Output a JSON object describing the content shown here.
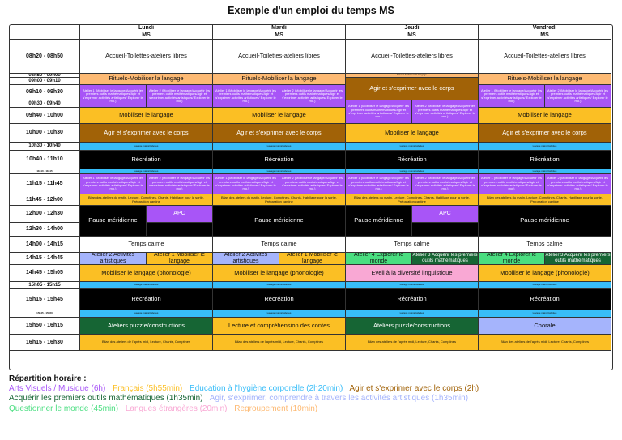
{
  "title": "Exemple d'un emploi du temps MS",
  "days": [
    "Lundi",
    "Mardi",
    "Jeudi",
    "Vendredi"
  ],
  "level": "MS",
  "times": {
    "t1": "08h20 - 08h50",
    "t2": "08h50 - 09h00",
    "t3": "09h00 - 09h10",
    "t4": "09h10 - 09h30",
    "t5": "09h30 - 09h40",
    "t6": "09h40 - 10h00",
    "t7": "10h00 - 10h30",
    "t8": "10h30 - 10h40",
    "t9": "10h40 - 11h10",
    "t10": "11h10 - 11h15",
    "t11": "11h15 - 11h45",
    "t12": "11h45 - 12h00",
    "t13": "12h00 - 12h30",
    "t14": "12h30 - 14h00",
    "t15": "14h00 - 14h15",
    "t16": "14h15 - 14h45",
    "t17": "14h45 - 15h05",
    "t18": "15h05 - 15h15",
    "t19": "15h15 - 15h45",
    "t20": "15h45 - 15h50",
    "t21": "15h50 - 16h15",
    "t22": "16h15 - 16h30"
  },
  "activities": {
    "accueil": "Accueil-Toilettes-ateliers libres",
    "rituels": "Rituels-Mobiliser la langage",
    "rituels_small": "Rituels-Mobiliser la langage",
    "atelier1_phon": "Atelier 1 (Mobiliser le langage/Acquérir les premiers outils mathématiques/Agir et s'exprimer activités artistiques/ Explorer le mo.)",
    "atelier2_phon": "Atelier 2 (Mobiliser le langage/Acquérir les premiers outils mathématiques/Agir et s'exprimer activités artistiques/ Explorer le mo.)",
    "agir_corps": "Agir et s'exprimer avec le corps",
    "mobiliser": "Mobiliser le langage",
    "lavage": "Lavage mains/toilettes",
    "recreation": "Récréation",
    "bilan_matin": "Bilan des ateliers du matin, Lecture, Comptines, Chants, Habillage pour la sortie, Préparation cantine",
    "pause": "Pause méridienne",
    "apc": "APC",
    "temps_calme": "Temps calme",
    "atelier2_arts": "Atelier 2 Activités artistiques",
    "atelier1_mob": "Atelier 1 Mobiliser le langage",
    "atelier4_monde": "Atelier 4 Explorer le monde",
    "atelier3_maths": "Atelier 3 Acquérir les premiers outils mathématiques",
    "phonologie": "Mobiliser le langage (phonologie)",
    "eveil": "Eveil à la diversité linguistique",
    "puzzle": "Ateliers puzzle/constructions",
    "lecture": "Lecture et compréhension des contes",
    "chorale": "Chorale",
    "bilan_aprem": "Bilan des ateliers de l'après midi, Lecture, Chants, Comptines"
  },
  "legend": {
    "title": "Répartition horaire :",
    "items": [
      {
        "text": "Arts Visuels / Musique (6h)",
        "color": "#a855f7"
      },
      {
        "text": "Français (5h55min)",
        "color": "#fbbf24"
      },
      {
        "text": "Education à l'hygiène corporelle (2h20min)",
        "color": "#38bdf8"
      },
      {
        "text": "Agir et s'exprimer avec le corps (2h)",
        "color": "#a16207"
      },
      {
        "text": "Acquérir les premiers outils mathématiques (1h35min)",
        "color": "#166534"
      },
      {
        "text": "Agir, s'exprimer, comprendre à travers les activités artistiques (1h35min)",
        "color": "#a5b4fc"
      },
      {
        "text": "Questionner le monde (45min)",
        "color": "#4ade80"
      },
      {
        "text": "Langues étrangères (20min)",
        "color": "#f9a8d4"
      },
      {
        "text": "Regroupement (10min)",
        "color": "#fdba74"
      }
    ]
  }
}
